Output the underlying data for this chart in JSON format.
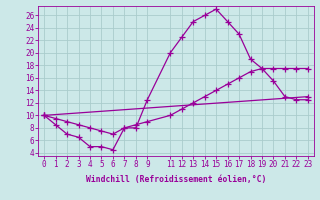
{
  "xlabel": "Windchill (Refroidissement éolien,°C)",
  "line_color": "#990099",
  "bg_color": "#cce8e8",
  "grid_color": "#aacccc",
  "xlim": [
    -0.5,
    23.5
  ],
  "ylim": [
    3.5,
    27.5
  ],
  "xticks": [
    0,
    1,
    2,
    3,
    4,
    5,
    6,
    7,
    8,
    9,
    11,
    12,
    13,
    14,
    15,
    16,
    17,
    18,
    19,
    20,
    21,
    22,
    23
  ],
  "yticks": [
    4,
    6,
    8,
    10,
    12,
    14,
    16,
    18,
    20,
    22,
    24,
    26
  ],
  "line1_x": [
    0,
    1,
    2,
    3,
    4,
    5,
    6,
    7,
    8,
    9,
    11,
    12,
    13,
    14,
    15,
    16,
    17,
    18,
    19,
    20,
    21,
    22,
    23
  ],
  "line1_y": [
    10,
    8.5,
    7,
    6.5,
    5,
    5,
    4.5,
    8,
    8,
    12.5,
    20,
    22.5,
    25,
    26,
    27,
    25,
    23,
    19,
    17.5,
    15.5,
    13,
    12.5,
    12.5
  ],
  "line2_x": [
    0,
    23
  ],
  "line2_y": [
    10,
    13
  ],
  "line3_x": [
    0,
    1,
    2,
    3,
    4,
    5,
    6,
    7,
    8,
    9,
    11,
    12,
    13,
    14,
    15,
    16,
    17,
    18,
    19,
    20,
    21,
    22,
    23
  ],
  "line3_y": [
    10,
    9.5,
    9,
    8.5,
    8,
    7.5,
    7,
    8,
    8.5,
    9,
    10,
    11,
    12,
    13,
    14,
    15,
    16,
    17,
    17.5,
    17.5,
    17.5,
    17.5,
    17.5
  ],
  "tick_fontsize": 5.5,
  "label_fontsize": 5.8,
  "linewidth": 0.9,
  "markersize": 4.0
}
